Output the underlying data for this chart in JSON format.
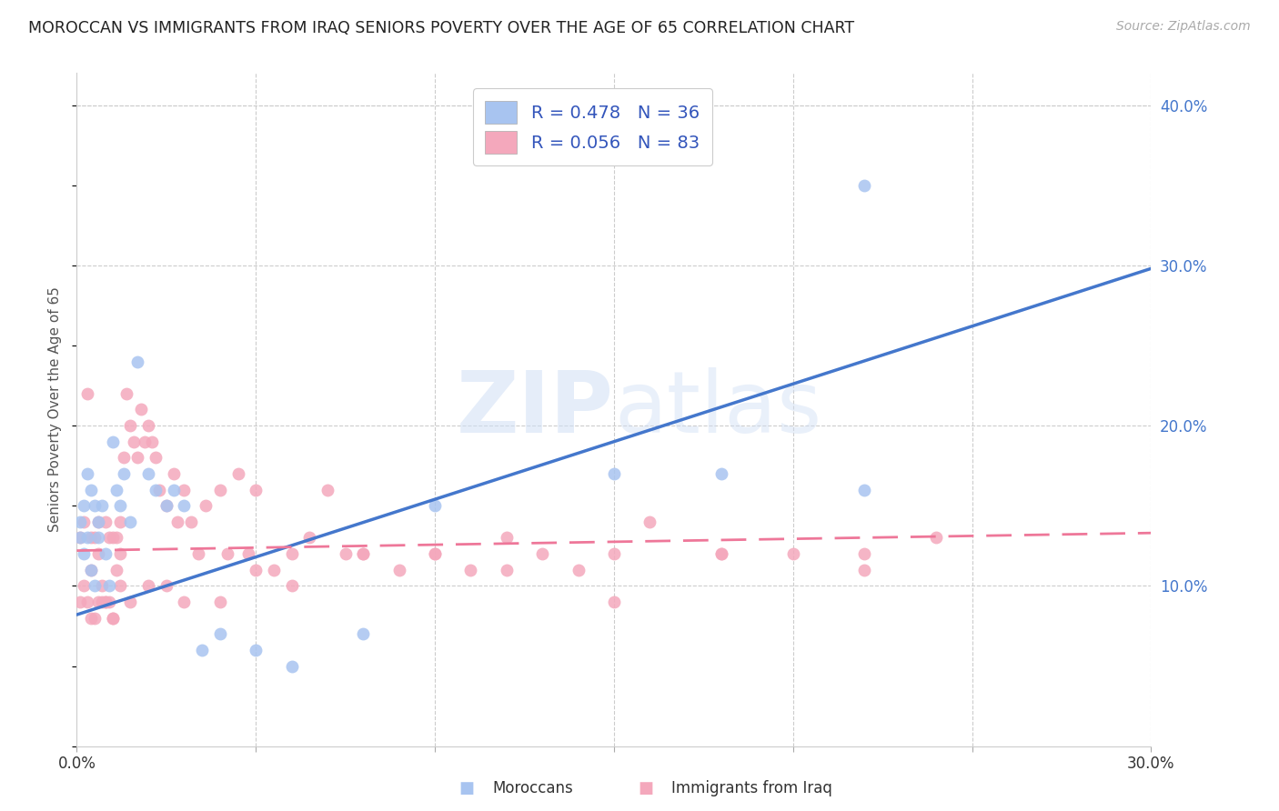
{
  "title": "MOROCCAN VS IMMIGRANTS FROM IRAQ SENIORS POVERTY OVER THE AGE OF 65 CORRELATION CHART",
  "source": "Source: ZipAtlas.com",
  "xlabel_label": "Moroccans",
  "xlabel_label2": "Immigrants from Iraq",
  "ylabel": "Seniors Poverty Over the Age of 65",
  "xlim": [
    0.0,
    0.3
  ],
  "ylim": [
    0.0,
    0.42
  ],
  "watermark": "ZIPatlas",
  "legend_r1": "R = 0.478",
  "legend_n1": "N = 36",
  "legend_r2": "R = 0.056",
  "legend_n2": "N = 83",
  "blue_color": "#a8c4f0",
  "pink_color": "#f4a8bc",
  "blue_line_color": "#4477cc",
  "pink_line_color": "#ee7799",
  "blue_line_start_y": 0.082,
  "blue_line_end_y": 0.298,
  "pink_line_start_y": 0.122,
  "pink_line_end_y": 0.133,
  "moroccan_x": [
    0.001,
    0.001,
    0.002,
    0.002,
    0.003,
    0.003,
    0.004,
    0.004,
    0.005,
    0.005,
    0.006,
    0.006,
    0.007,
    0.008,
    0.009,
    0.01,
    0.011,
    0.012,
    0.013,
    0.015,
    0.017,
    0.02,
    0.022,
    0.025,
    0.027,
    0.03,
    0.035,
    0.04,
    0.05,
    0.06,
    0.08,
    0.1,
    0.15,
    0.18,
    0.22,
    0.22
  ],
  "moroccan_y": [
    0.14,
    0.13,
    0.15,
    0.12,
    0.13,
    0.17,
    0.16,
    0.11,
    0.15,
    0.1,
    0.14,
    0.13,
    0.15,
    0.12,
    0.1,
    0.19,
    0.16,
    0.15,
    0.17,
    0.14,
    0.24,
    0.17,
    0.16,
    0.15,
    0.16,
    0.15,
    0.06,
    0.07,
    0.06,
    0.05,
    0.07,
    0.15,
    0.17,
    0.17,
    0.16,
    0.35
  ],
  "iraq_x": [
    0.001,
    0.001,
    0.002,
    0.002,
    0.003,
    0.003,
    0.004,
    0.004,
    0.005,
    0.005,
    0.006,
    0.006,
    0.007,
    0.007,
    0.008,
    0.008,
    0.009,
    0.009,
    0.01,
    0.01,
    0.011,
    0.011,
    0.012,
    0.012,
    0.013,
    0.014,
    0.015,
    0.016,
    0.017,
    0.018,
    0.019,
    0.02,
    0.021,
    0.022,
    0.023,
    0.025,
    0.027,
    0.028,
    0.03,
    0.032,
    0.034,
    0.036,
    0.04,
    0.042,
    0.045,
    0.048,
    0.05,
    0.055,
    0.06,
    0.065,
    0.07,
    0.075,
    0.08,
    0.09,
    0.1,
    0.11,
    0.12,
    0.13,
    0.14,
    0.15,
    0.16,
    0.18,
    0.2,
    0.22,
    0.24,
    0.22,
    0.18,
    0.15,
    0.12,
    0.1,
    0.08,
    0.06,
    0.05,
    0.04,
    0.03,
    0.025,
    0.02,
    0.015,
    0.012,
    0.01,
    0.008,
    0.006,
    0.004
  ],
  "iraq_y": [
    0.13,
    0.09,
    0.14,
    0.1,
    0.22,
    0.09,
    0.13,
    0.11,
    0.13,
    0.08,
    0.14,
    0.12,
    0.1,
    0.09,
    0.14,
    0.09,
    0.13,
    0.09,
    0.13,
    0.08,
    0.13,
    0.11,
    0.14,
    0.12,
    0.18,
    0.22,
    0.2,
    0.19,
    0.18,
    0.21,
    0.19,
    0.2,
    0.19,
    0.18,
    0.16,
    0.15,
    0.17,
    0.14,
    0.16,
    0.14,
    0.12,
    0.15,
    0.16,
    0.12,
    0.17,
    0.12,
    0.16,
    0.11,
    0.12,
    0.13,
    0.16,
    0.12,
    0.12,
    0.11,
    0.12,
    0.11,
    0.13,
    0.12,
    0.11,
    0.12,
    0.14,
    0.12,
    0.12,
    0.12,
    0.13,
    0.11,
    0.12,
    0.09,
    0.11,
    0.12,
    0.12,
    0.1,
    0.11,
    0.09,
    0.09,
    0.1,
    0.1,
    0.09,
    0.1,
    0.08,
    0.09,
    0.09,
    0.08
  ]
}
